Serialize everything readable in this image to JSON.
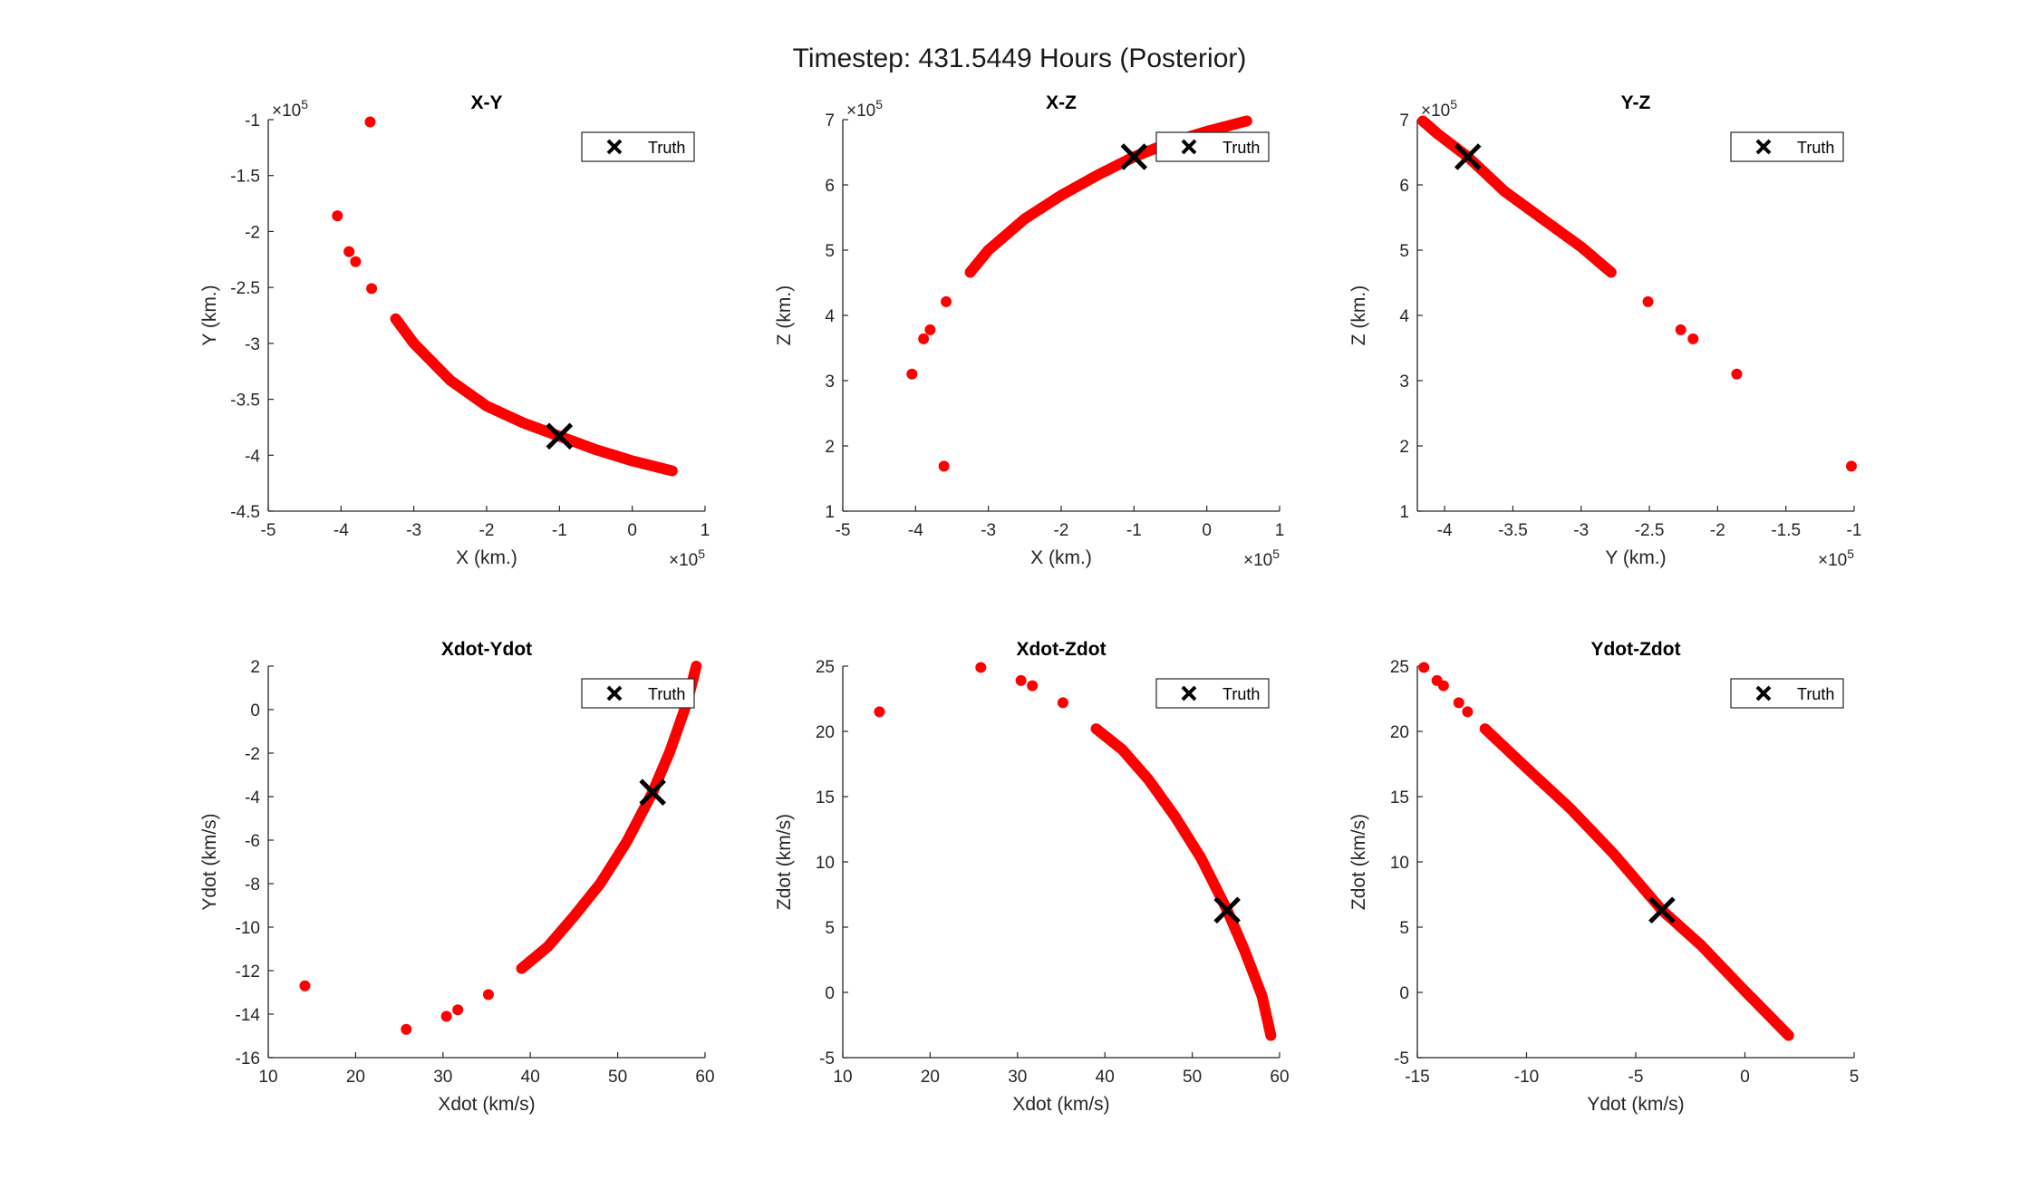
{
  "figure": {
    "title": "Timestep: 431.5449 Hours (Posterior)"
  },
  "colors": {
    "points": "#ff0000",
    "truth": "#000000",
    "axis": "#262626"
  },
  "chart_data": [
    {
      "type": "scatter",
      "title": "X-Y",
      "xlabel": "X (km.)",
      "ylabel": "Y (km.)",
      "xlim": [
        -500000,
        100000
      ],
      "ylim": [
        -450000,
        -100000
      ],
      "xticks": [
        -500000,
        -400000,
        -300000,
        -200000,
        -100000,
        0,
        100000
      ],
      "xticklabels": [
        "-5",
        "-4",
        "-3",
        "-2",
        "-1",
        "0",
        "1"
      ],
      "yticks": [
        -450000,
        -400000,
        -350000,
        -300000,
        -250000,
        -200000,
        -150000,
        -100000
      ],
      "yticklabels": [
        "-4.5",
        "-4",
        "-3.5",
        "-3",
        "-2.5",
        "-2",
        "-1.5",
        "-1"
      ],
      "xmultiplier": "×10^5",
      "ymultiplier": "×10^5",
      "legend": "Truth",
      "legend_location": "top-right",
      "truth": [
        -100000,
        -383000
      ],
      "outliers": [
        [
          -360000,
          -102000
        ],
        [
          -405000,
          -186000
        ],
        [
          -389000,
          -218000
        ],
        [
          -380000,
          -227000
        ],
        [
          -358000,
          -251000
        ]
      ],
      "curve": [
        [
          -325000,
          -278000
        ],
        [
          -300000,
          -300000
        ],
        [
          -250000,
          -333000
        ],
        [
          -200000,
          -356000
        ],
        [
          -150000,
          -371000
        ],
        [
          -100000,
          -383000
        ],
        [
          -50000,
          -395000
        ],
        [
          0,
          -405000
        ],
        [
          55000,
          -414000
        ]
      ]
    },
    {
      "type": "scatter",
      "title": "X-Z",
      "xlabel": "X (km.)",
      "ylabel": "Z (km.)",
      "xlim": [
        -500000,
        100000
      ],
      "ylim": [
        100000,
        700000
      ],
      "xticks": [
        -500000,
        -400000,
        -300000,
        -200000,
        -100000,
        0,
        100000
      ],
      "xticklabels": [
        "-5",
        "-4",
        "-3",
        "-2",
        "-1",
        "0",
        "1"
      ],
      "yticks": [
        100000,
        200000,
        300000,
        400000,
        500000,
        600000,
        700000
      ],
      "yticklabels": [
        "1",
        "2",
        "3",
        "4",
        "5",
        "6",
        "7"
      ],
      "xmultiplier": "×10^5",
      "ymultiplier": "×10^5",
      "legend": "Truth",
      "legend_location": "top-right",
      "truth": [
        -100000,
        643000
      ],
      "outliers": [
        [
          -361000,
          169000
        ],
        [
          -405000,
          310000
        ],
        [
          -389000,
          364000
        ],
        [
          -380000,
          378000
        ],
        [
          -358000,
          421000
        ]
      ],
      "curve": [
        [
          -325000,
          466000
        ],
        [
          -300000,
          500000
        ],
        [
          -250000,
          548000
        ],
        [
          -200000,
          584000
        ],
        [
          -150000,
          615000
        ],
        [
          -100000,
          643000
        ],
        [
          -50000,
          665000
        ],
        [
          0,
          682000
        ],
        [
          55000,
          698000
        ]
      ]
    },
    {
      "type": "scatter",
      "title": "Y-Z",
      "xlabel": "Y (km.)",
      "ylabel": "Z (km.)",
      "xlim": [
        -420000,
        -100000
      ],
      "ylim": [
        100000,
        700000
      ],
      "xticks": [
        -400000,
        -350000,
        -300000,
        -250000,
        -200000,
        -150000,
        -100000
      ],
      "xticklabels": [
        "-4",
        "-3.5",
        "-3",
        "-2.5",
        "-2",
        "-1.5",
        "-1"
      ],
      "yticks": [
        100000,
        200000,
        300000,
        400000,
        500000,
        600000,
        700000
      ],
      "yticklabels": [
        "1",
        "2",
        "3",
        "4",
        "5",
        "6",
        "7"
      ],
      "xmultiplier": "×10^5",
      "ymultiplier": "×10^5",
      "legend": "Truth",
      "legend_location": "top-right",
      "truth": [
        -383000,
        643000
      ],
      "outliers": [
        [
          -102000,
          169000
        ],
        [
          -186000,
          310000
        ],
        [
          -218000,
          364000
        ],
        [
          -227000,
          378000
        ],
        [
          -251000,
          421000
        ]
      ],
      "curve": [
        [
          -278000,
          466000
        ],
        [
          -300000,
          505000
        ],
        [
          -333000,
          555000
        ],
        [
          -356000,
          590000
        ],
        [
          -383000,
          643000
        ],
        [
          -405000,
          678000
        ],
        [
          -416000,
          698000
        ]
      ]
    },
    {
      "type": "scatter",
      "title": "Xdot-Ydot",
      "xlabel": "Xdot (km/s)",
      "ylabel": "Ydot (km/s)",
      "xlim": [
        10,
        60
      ],
      "ylim": [
        -16,
        2
      ],
      "xticks": [
        10,
        20,
        30,
        40,
        50,
        60
      ],
      "xticklabels": [
        "10",
        "20",
        "30",
        "40",
        "50",
        "60"
      ],
      "yticks": [
        -16,
        -14,
        -12,
        -10,
        -8,
        -6,
        -4,
        -2,
        0,
        2
      ],
      "yticklabels": [
        "-16",
        "-14",
        "-12",
        "-10",
        "-8",
        "-6",
        "-4",
        "-2",
        "0",
        "2"
      ],
      "legend": "Truth",
      "legend_location": "top-right",
      "truth": [
        54,
        -3.8
      ],
      "outliers": [
        [
          14.2,
          -12.7
        ],
        [
          25.8,
          -14.7
        ],
        [
          30.4,
          -14.1
        ],
        [
          31.7,
          -13.8
        ],
        [
          35.2,
          -13.1
        ]
      ],
      "curve": [
        [
          39,
          -11.9
        ],
        [
          42,
          -10.9
        ],
        [
          45,
          -9.5
        ],
        [
          48,
          -8
        ],
        [
          51,
          -6.1
        ],
        [
          54,
          -3.8
        ],
        [
          56,
          -1.9
        ],
        [
          58,
          0.4
        ],
        [
          59,
          2
        ]
      ]
    },
    {
      "type": "scatter",
      "title": "Xdot-Zdot",
      "xlabel": "Xdot (km/s)",
      "ylabel": "Zdot (km/s)",
      "xlim": [
        10,
        60
      ],
      "ylim": [
        -5,
        25
      ],
      "xticks": [
        10,
        20,
        30,
        40,
        50,
        60
      ],
      "xticklabels": [
        "10",
        "20",
        "30",
        "40",
        "50",
        "60"
      ],
      "yticks": [
        -5,
        0,
        5,
        10,
        15,
        20,
        25
      ],
      "yticklabels": [
        "-5",
        "0",
        "5",
        "10",
        "15",
        "20",
        "25"
      ],
      "legend": "Truth",
      "legend_location": "top-right",
      "truth": [
        54,
        6.3
      ],
      "outliers": [
        [
          14.2,
          21.5
        ],
        [
          25.8,
          24.9
        ],
        [
          30.4,
          23.9
        ],
        [
          31.7,
          23.5
        ],
        [
          35.2,
          22.2
        ]
      ],
      "curve": [
        [
          39,
          20.2
        ],
        [
          42,
          18.6
        ],
        [
          45,
          16.3
        ],
        [
          48,
          13.5
        ],
        [
          51,
          10.3
        ],
        [
          54,
          6.3
        ],
        [
          56,
          3.2
        ],
        [
          58,
          -0.3
        ],
        [
          59,
          -3.3
        ]
      ]
    },
    {
      "type": "scatter",
      "title": "Ydot-Zdot",
      "xlabel": "Ydot (km/s)",
      "ylabel": "Zdot (km/s)",
      "xlim": [
        -15,
        5
      ],
      "ylim": [
        -5,
        25
      ],
      "xticks": [
        -15,
        -10,
        -5,
        0,
        5
      ],
      "xticklabels": [
        "-15",
        "-10",
        "-5",
        "0",
        "5"
      ],
      "yticks": [
        -5,
        0,
        5,
        10,
        15,
        20,
        25
      ],
      "yticklabels": [
        "-5",
        "0",
        "5",
        "10",
        "15",
        "20",
        "25"
      ],
      "legend": "Truth",
      "legend_location": "top-right",
      "truth": [
        -3.8,
        6.3
      ],
      "outliers": [
        [
          -14.7,
          24.9
        ],
        [
          -14.1,
          23.9
        ],
        [
          -13.8,
          23.5
        ],
        [
          -13.1,
          22.2
        ],
        [
          -12.7,
          21.5
        ]
      ],
      "curve": [
        [
          -11.9,
          20.2
        ],
        [
          -10,
          17.2
        ],
        [
          -8,
          14.1
        ],
        [
          -6,
          10.6
        ],
        [
          -3.8,
          6.3
        ],
        [
          -2,
          3.6
        ],
        [
          0,
          0.1
        ],
        [
          1,
          -1.6
        ],
        [
          2,
          -3.3
        ]
      ]
    }
  ]
}
